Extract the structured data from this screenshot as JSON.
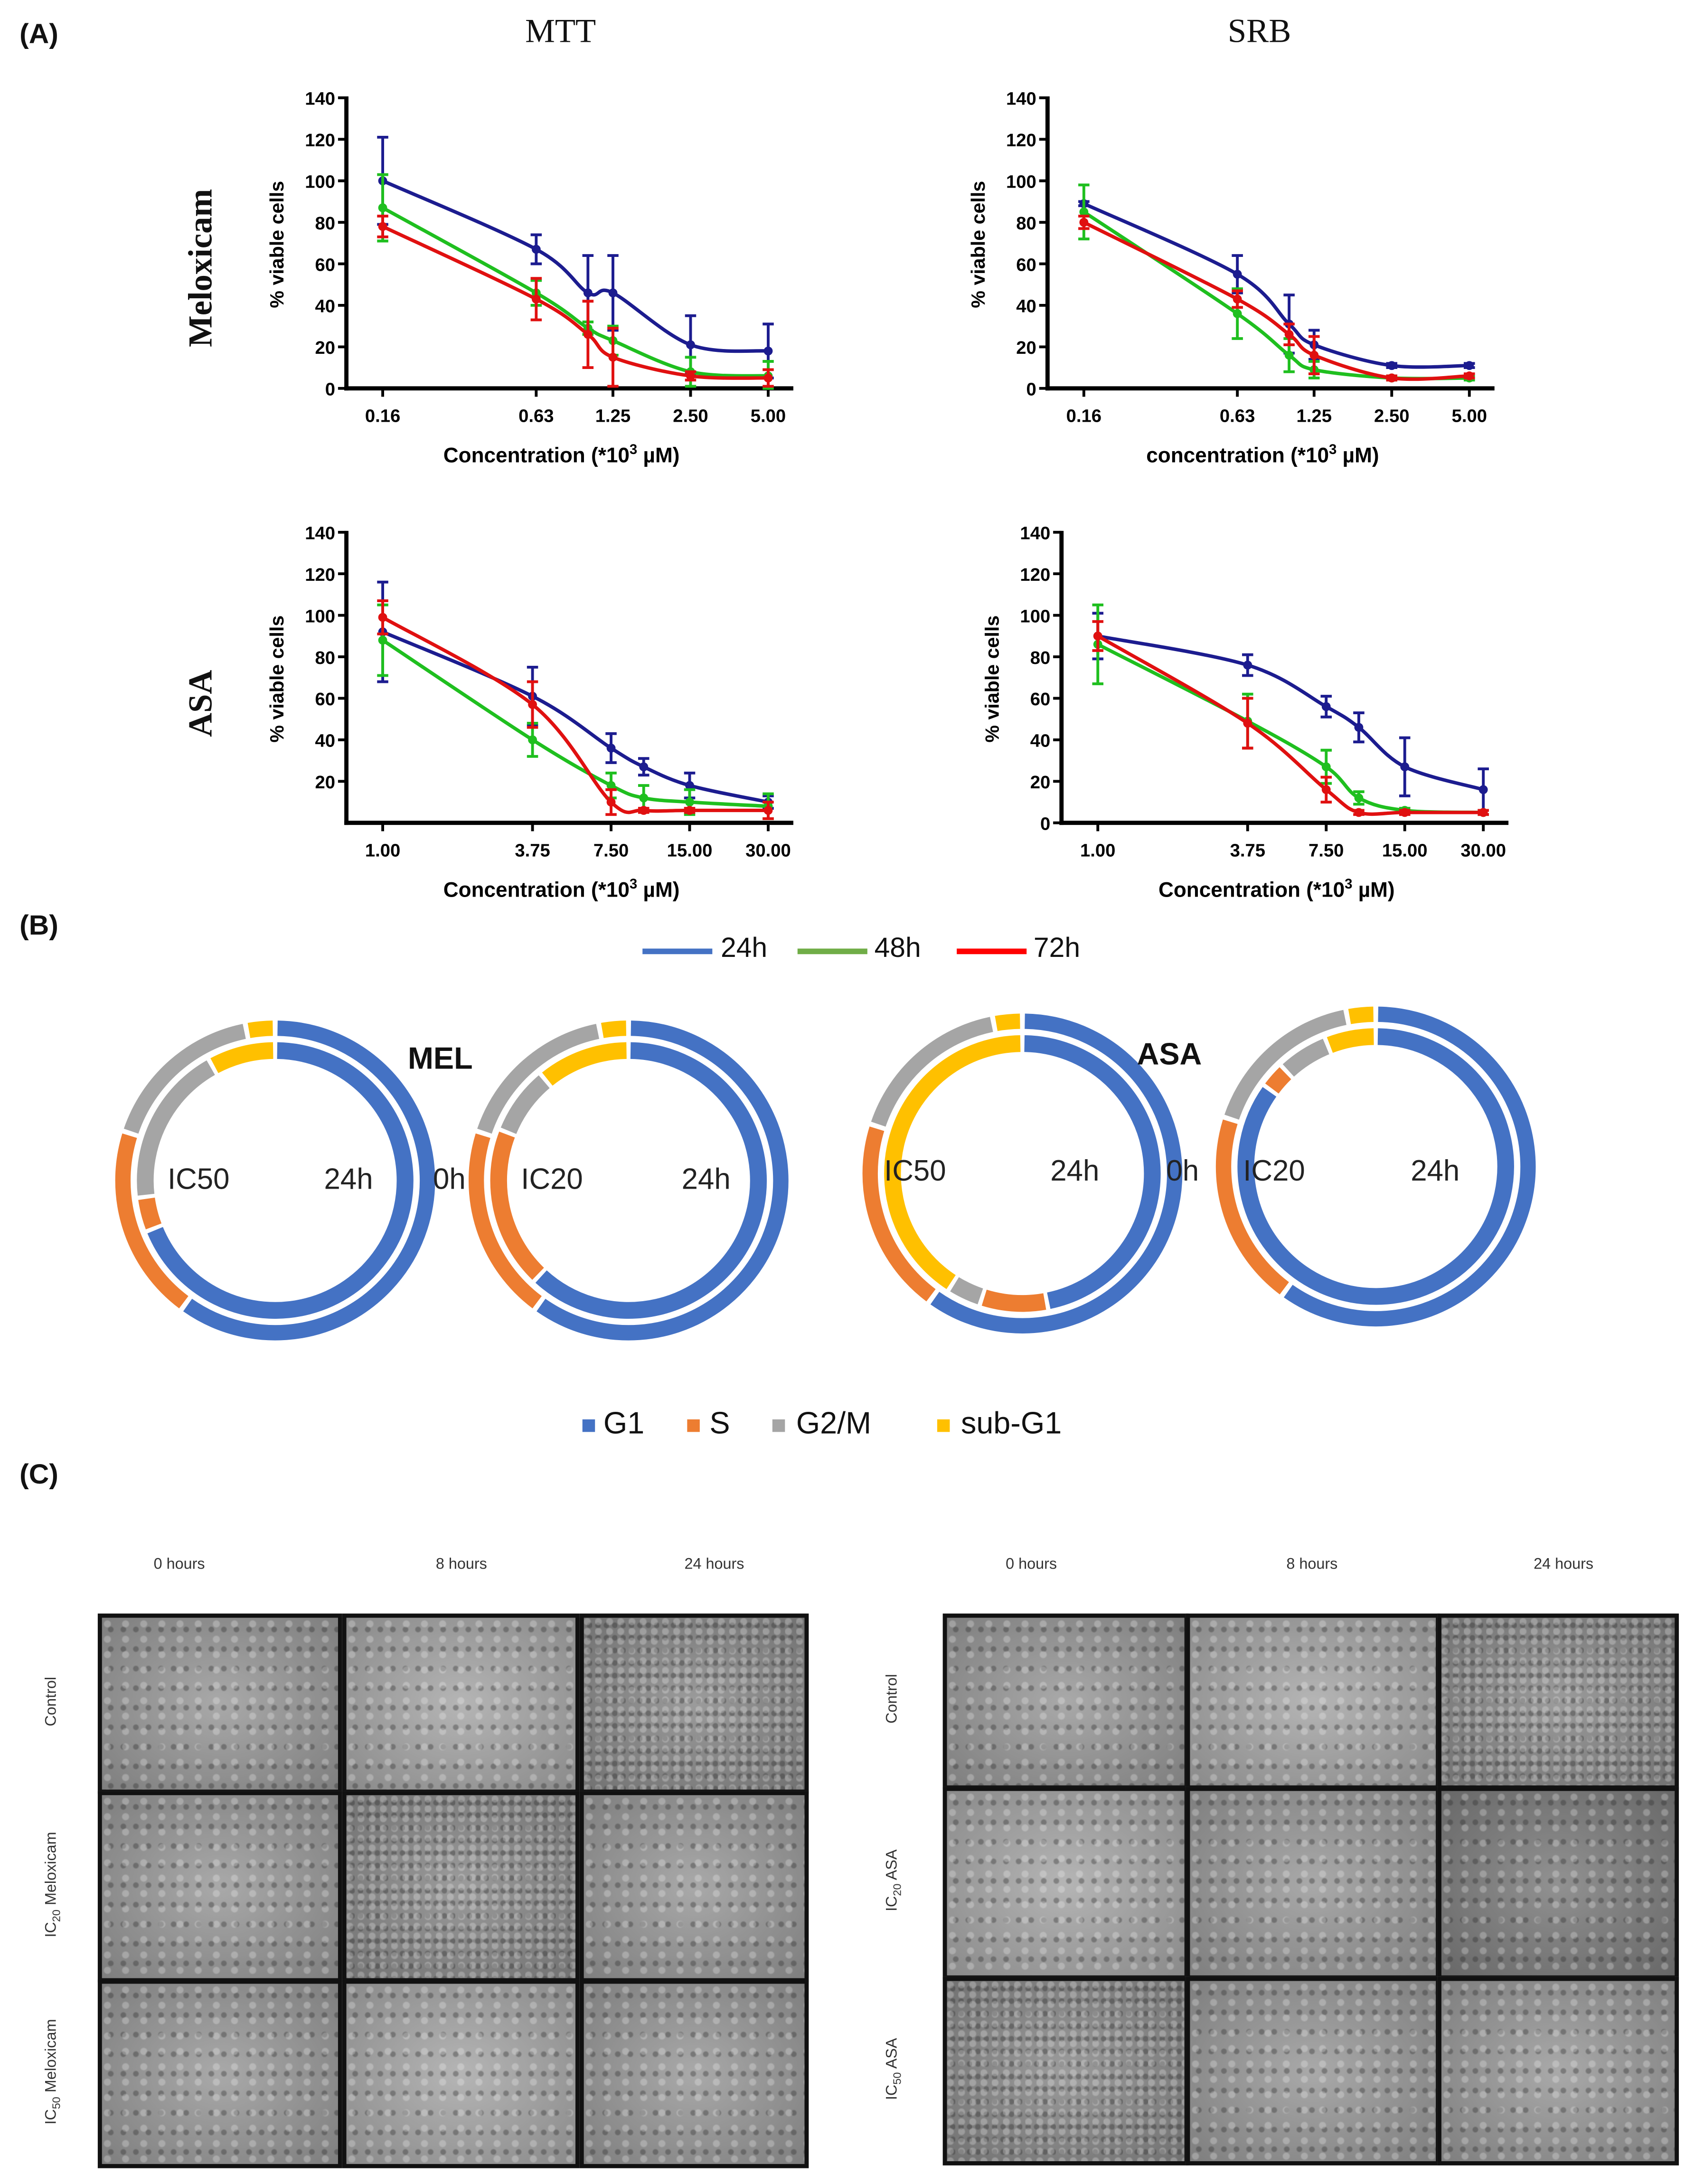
{
  "panel_labels": {
    "a": "(A)",
    "b": "(B)",
    "c": "(C)"
  },
  "panel_a": {
    "col_mtt": "MTT",
    "col_srb": "SRB",
    "row_meloxicam": "Meloxicam",
    "row_asa": "ASA"
  },
  "legend_time": [
    {
      "label": "24h",
      "color": "#4472c4"
    },
    {
      "label": "48h",
      "color": "#70ad47"
    },
    {
      "label": "72h",
      "color": "#ff0000"
    }
  ],
  "chart_data": [
    {
      "type": "line",
      "title": "MTT - Meloxicam",
      "xscale": "log",
      "xlabel_pre": "Concentration (*10",
      "xlabel_sup": "3",
      "xlabel_post": " µM)",
      "ylabel": "% viable cells",
      "ylim": [
        0,
        140
      ],
      "x_ticks": [
        0.16,
        0.63,
        1.25,
        2.5,
        5.0
      ],
      "x_tick_labels": [
        "0.16",
        "0.63",
        "1.25",
        "2.50",
        "5.00"
      ],
      "y_ticks": [
        0,
        20,
        40,
        60,
        80,
        100,
        120,
        140
      ],
      "y_tick_labels": [
        "0",
        "20",
        "40",
        "60",
        "80",
        "100",
        "120",
        "140"
      ],
      "x": [
        0.16,
        0.63,
        1.0,
        1.25,
        2.5,
        5.0
      ],
      "series": [
        {
          "name": "24h",
          "color": "#1c1c8f",
          "values": [
            100,
            67,
            46,
            46,
            21,
            18
          ],
          "errors": [
            21,
            7,
            18,
            18,
            14,
            13
          ]
        },
        {
          "name": "48h",
          "color": "#1fbf1f",
          "values": [
            87,
            46,
            29,
            23,
            8,
            6
          ],
          "errors": [
            16,
            6,
            3,
            7,
            7,
            7
          ]
        },
        {
          "name": "72h",
          "color": "#e01010",
          "values": [
            78,
            43,
            26,
            15,
            6,
            5
          ],
          "errors": [
            5,
            10,
            16,
            14,
            2,
            4
          ]
        }
      ]
    },
    {
      "type": "line",
      "title": "SRB - Meloxicam",
      "xscale": "log",
      "xlabel_pre": "concentration (*10",
      "xlabel_sup": "3",
      "xlabel_post": " µM)",
      "ylabel": "% viable cells",
      "ylim": [
        0,
        140
      ],
      "x_ticks": [
        0.16,
        0.63,
        1.25,
        2.5,
        5.0
      ],
      "x_tick_labels": [
        "0.16",
        "0.63",
        "1.25",
        "2.50",
        "5.00"
      ],
      "y_ticks": [
        0,
        20,
        40,
        60,
        80,
        100,
        120,
        140
      ],
      "y_tick_labels": [
        "0",
        "20",
        "40",
        "60",
        "80",
        "100",
        "120",
        "140"
      ],
      "x": [
        0.16,
        0.63,
        1.0,
        1.25,
        2.5,
        5.0
      ],
      "series": [
        {
          "name": "24h",
          "color": "#1c1c8f",
          "values": [
            89,
            55,
            31,
            21,
            11,
            11
          ],
          "errors": [
            1,
            9,
            14,
            7,
            1,
            1
          ]
        },
        {
          "name": "48h",
          "color": "#1fbf1f",
          "values": [
            85,
            36,
            16,
            9,
            5,
            5
          ],
          "errors": [
            13,
            12,
            8,
            4,
            1,
            1
          ]
        },
        {
          "name": "72h",
          "color": "#e01010",
          "values": [
            80,
            43,
            26,
            16,
            5,
            6
          ],
          "errors": [
            3,
            4,
            5,
            9,
            1,
            1
          ]
        }
      ]
    },
    {
      "type": "line",
      "title": "MTT - ASA",
      "xscale": "log",
      "xlabel_pre": "Concentration (*10",
      "xlabel_sup": "3",
      "xlabel_post": " µM)",
      "ylabel": "% viable cells",
      "ylim": [
        0,
        140
      ],
      "x_ticks": [
        1.0,
        3.75,
        7.5,
        15.0,
        30.0
      ],
      "x_tick_labels": [
        "1.00",
        "3.75",
        "7.50",
        "15.00",
        "30.00"
      ],
      "y_ticks": [
        20,
        40,
        60,
        80,
        100,
        120,
        140
      ],
      "y_tick_labels": [
        "20",
        "40",
        "60",
        "80",
        "100",
        "120",
        "140"
      ],
      "x": [
        1.0,
        3.75,
        7.5,
        10.0,
        15.0,
        30.0
      ],
      "series": [
        {
          "name": "24h",
          "color": "#1c1c8f",
          "values": [
            92,
            61,
            36,
            27,
            18,
            10
          ],
          "errors": [
            24,
            14,
            7,
            4,
            6,
            3
          ]
        },
        {
          "name": "48h",
          "color": "#1fbf1f",
          "values": [
            88,
            40,
            18,
            12,
            10,
            8
          ],
          "errors": [
            17,
            8,
            6,
            6,
            6,
            6
          ]
        },
        {
          "name": "72h",
          "color": "#e01010",
          "values": [
            99,
            57,
            10,
            6,
            6,
            6
          ],
          "errors": [
            8,
            11,
            6,
            1,
            1,
            4
          ]
        }
      ]
    },
    {
      "type": "line",
      "title": "SRB - ASA",
      "xscale": "log",
      "xlabel_pre": "Concentration (*10",
      "xlabel_sup": "3",
      "xlabel_post": " µM)",
      "ylabel": "% viable cells",
      "ylim": [
        0,
        140
      ],
      "x_ticks": [
        1.0,
        3.75,
        7.5,
        15.0,
        30.0
      ],
      "x_tick_labels": [
        "1.00",
        "3.75",
        "7.50",
        "15.00",
        "30.00"
      ],
      "y_ticks": [
        0,
        20,
        40,
        60,
        80,
        100,
        120,
        140
      ],
      "y_tick_labels": [
        "0",
        "20",
        "40",
        "60",
        "80",
        "100",
        "120",
        "140"
      ],
      "x": [
        1.0,
        3.75,
        7.5,
        10.0,
        15.0,
        30.0
      ],
      "series": [
        {
          "name": "24h",
          "color": "#1c1c8f",
          "values": [
            90,
            76,
            56,
            46,
            27,
            16
          ],
          "errors": [
            11,
            5,
            5,
            7,
            14,
            10
          ]
        },
        {
          "name": "48h",
          "color": "#1fbf1f",
          "values": [
            86,
            49,
            27,
            12,
            6,
            5
          ],
          "errors": [
            19,
            13,
            8,
            3,
            1,
            1
          ]
        },
        {
          "name": "72h",
          "color": "#e01010",
          "values": [
            90,
            48,
            16,
            5,
            5,
            5
          ],
          "errors": [
            7,
            12,
            6,
            1,
            1,
            1
          ]
        }
      ]
    },
    {
      "type": "pie",
      "subtype": "doughnut",
      "title": "MEL IC50",
      "categories": [
        "G1",
        "S",
        "G2/M",
        "sub-G1"
      ],
      "rings": [
        {
          "name": "0h",
          "values": [
            60,
            20,
            17,
            3
          ]
        },
        {
          "name": "24h",
          "values": [
            69,
            4,
            19,
            8
          ]
        }
      ]
    },
    {
      "type": "pie",
      "subtype": "doughnut",
      "title": "MEL IC20",
      "categories": [
        "G1",
        "S",
        "G2/M",
        "sub-G1"
      ],
      "rings": [
        {
          "name": "0h",
          "values": [
            60,
            20,
            17,
            3
          ]
        },
        {
          "name": "24h",
          "values": [
            62,
            19,
            8,
            11
          ]
        }
      ]
    },
    {
      "type": "pie",
      "subtype": "doughnut",
      "title": "ASA IC50",
      "categories": [
        "G1",
        "S",
        "G2/M",
        "sub-G1"
      ],
      "rings": [
        {
          "name": "0h",
          "values": [
            60,
            20,
            17,
            3
          ]
        },
        {
          "name": "24h",
          "values": [
            47,
            8,
            4,
            41
          ]
        }
      ]
    },
    {
      "type": "pie",
      "subtype": "doughnut",
      "title": "ASA IC20",
      "categories": [
        "G1",
        "S",
        "G2/M",
        "sub-G1"
      ],
      "rings": [
        {
          "name": "0h",
          "values": [
            60,
            20,
            17,
            3
          ]
        },
        {
          "name": "24h",
          "values": [
            85,
            3,
            6,
            6
          ]
        }
      ]
    }
  ],
  "panel_b": {
    "drug_mel": "MEL",
    "drug_asa": "ASA",
    "donuts": [
      {
        "dose": "IC50",
        "inner": "24h",
        "outer": "0h"
      },
      {
        "dose": "IC20",
        "inner": "24h"
      },
      {
        "dose": "IC50",
        "inner": "24h",
        "outer": "0h"
      },
      {
        "dose": "IC20",
        "inner": "24h"
      }
    ],
    "phase_legend": [
      {
        "label": "G1",
        "color": "#4472c4"
      },
      {
        "label": "S",
        "color": "#ed7d31"
      },
      {
        "label": "G2/M",
        "color": "#a5a5a5"
      },
      {
        "label": "sub-G1",
        "color": "#ffc000"
      }
    ]
  },
  "panel_c": {
    "times": [
      "0 hours",
      "8 hours",
      "24 hours"
    ],
    "left_rows": [
      {
        "ic": "",
        "sub": "",
        "name": "Control"
      },
      {
        "ic": "IC",
        "sub": "20",
        "name": " Meloxicam"
      },
      {
        "ic": "IC",
        "sub": "50",
        "name": " Meloxicam"
      }
    ],
    "right_rows": [
      {
        "ic": "",
        "sub": "",
        "name": "Control"
      },
      {
        "ic": "IC",
        "sub": "20",
        "name": " ASA"
      },
      {
        "ic": "IC",
        "sub": "50",
        "name": " ASA"
      }
    ]
  }
}
